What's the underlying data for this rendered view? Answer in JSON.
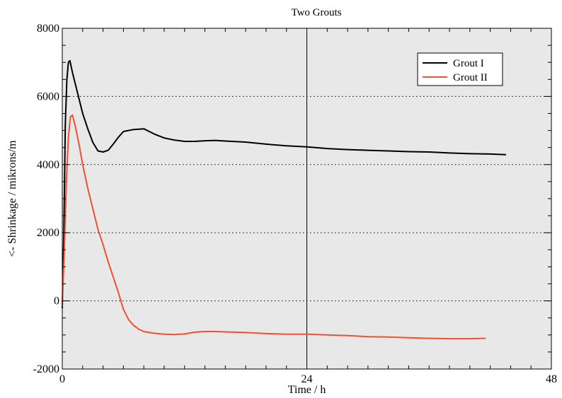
{
  "chart_data": {
    "type": "line",
    "title": "",
    "subtitle": "Two Grouts",
    "xlabel": "Time / h",
    "ylabel": "<- Shrinkage /  mikrons/m",
    "xlim": [
      0,
      48
    ],
    "ylim": [
      -2000,
      8000
    ],
    "x_ticks": [
      0,
      24,
      48
    ],
    "y_ticks": [
      -2000,
      0,
      2000,
      4000,
      6000,
      8000
    ],
    "grid": {
      "horizontal_dotted_at": [
        0,
        2000,
        4000,
        6000
      ],
      "vertical_solid_at": [
        24,
        48
      ]
    },
    "legend_position": "top-right",
    "plot_background": "#e8e8e8",
    "series": [
      {
        "name": "Grout I",
        "color": "#000000",
        "points": [
          [
            0.0,
            -200
          ],
          [
            0.15,
            2000
          ],
          [
            0.3,
            5200
          ],
          [
            0.45,
            6500
          ],
          [
            0.6,
            7000
          ],
          [
            0.75,
            7050
          ],
          [
            1.0,
            6700
          ],
          [
            1.5,
            6100
          ],
          [
            2.0,
            5500
          ],
          [
            2.5,
            5050
          ],
          [
            3.0,
            4650
          ],
          [
            3.5,
            4400
          ],
          [
            4.0,
            4370
          ],
          [
            4.5,
            4420
          ],
          [
            5.0,
            4600
          ],
          [
            5.5,
            4800
          ],
          [
            6.0,
            4970
          ],
          [
            7.0,
            5030
          ],
          [
            8.0,
            5050
          ],
          [
            9.0,
            4900
          ],
          [
            10.0,
            4780
          ],
          [
            11.0,
            4720
          ],
          [
            12.0,
            4680
          ],
          [
            13.0,
            4680
          ],
          [
            14.0,
            4700
          ],
          [
            15.0,
            4710
          ],
          [
            16.0,
            4690
          ],
          [
            18.0,
            4660
          ],
          [
            20.0,
            4600
          ],
          [
            22.0,
            4550
          ],
          [
            24.0,
            4520
          ],
          [
            26.0,
            4470
          ],
          [
            28.0,
            4440
          ],
          [
            30.0,
            4420
          ],
          [
            32.0,
            4400
          ],
          [
            34.0,
            4380
          ],
          [
            36.0,
            4370
          ],
          [
            38.0,
            4340
          ],
          [
            40.0,
            4320
          ],
          [
            42.0,
            4310
          ],
          [
            43.5,
            4290
          ]
        ]
      },
      {
        "name": "Grout II",
        "color": "#f05030",
        "points": [
          [
            0.0,
            -150
          ],
          [
            0.2,
            1500
          ],
          [
            0.4,
            3500
          ],
          [
            0.6,
            4800
          ],
          [
            0.8,
            5400
          ],
          [
            1.0,
            5450
          ],
          [
            1.3,
            5100
          ],
          [
            1.7,
            4500
          ],
          [
            2.0,
            4000
          ],
          [
            2.5,
            3300
          ],
          [
            3.0,
            2700
          ],
          [
            3.5,
            2100
          ],
          [
            4.0,
            1650
          ],
          [
            4.5,
            1150
          ],
          [
            5.0,
            700
          ],
          [
            5.5,
            250
          ],
          [
            6.0,
            -250
          ],
          [
            6.5,
            -550
          ],
          [
            7.0,
            -720
          ],
          [
            7.5,
            -830
          ],
          [
            8.0,
            -900
          ],
          [
            9.0,
            -950
          ],
          [
            10.0,
            -980
          ],
          [
            11.0,
            -990
          ],
          [
            12.0,
            -970
          ],
          [
            13.0,
            -920
          ],
          [
            14.0,
            -900
          ],
          [
            15.0,
            -900
          ],
          [
            16.0,
            -910
          ],
          [
            18.0,
            -930
          ],
          [
            20.0,
            -960
          ],
          [
            22.0,
            -980
          ],
          [
            24.0,
            -980
          ],
          [
            26.0,
            -1000
          ],
          [
            28.0,
            -1020
          ],
          [
            30.0,
            -1050
          ],
          [
            32.0,
            -1060
          ],
          [
            34.0,
            -1080
          ],
          [
            36.0,
            -1100
          ],
          [
            38.0,
            -1110
          ],
          [
            40.0,
            -1110
          ],
          [
            41.5,
            -1100
          ]
        ]
      }
    ]
  }
}
